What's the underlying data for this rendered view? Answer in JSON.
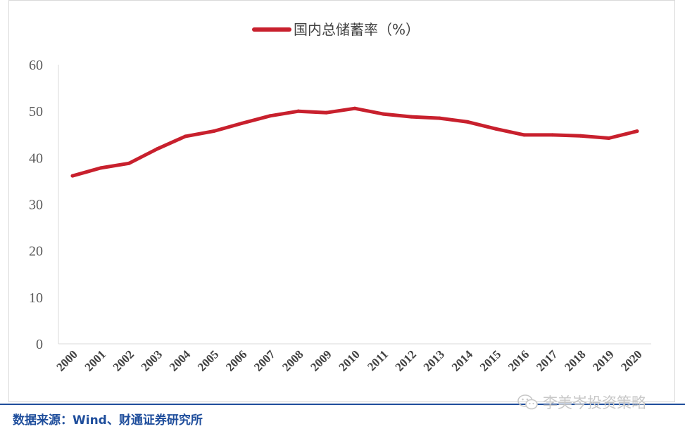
{
  "chart_data": {
    "type": "line",
    "title": "",
    "xlabel": "",
    "ylabel": "",
    "ylim": [
      0,
      60
    ],
    "y_ticks": [
      0,
      10,
      20,
      30,
      40,
      50,
      60
    ],
    "grid": false,
    "legend_position": "top-center",
    "categories": [
      "2000",
      "2001",
      "2002",
      "2003",
      "2004",
      "2005",
      "2006",
      "2007",
      "2008",
      "2009",
      "2010",
      "2011",
      "2012",
      "2013",
      "2014",
      "2015",
      "2016",
      "2017",
      "2018",
      "2019",
      "2020"
    ],
    "series": [
      {
        "name": "国内总储蓄率（%）",
        "color": "#c8202d",
        "values": [
          36.1,
          37.8,
          38.8,
          41.9,
          44.6,
          45.7,
          47.4,
          49.0,
          50.0,
          49.7,
          50.6,
          49.4,
          48.8,
          48.5,
          47.7,
          46.2,
          44.9,
          44.9,
          44.7,
          44.2,
          45.7
        ]
      }
    ]
  },
  "footer": {
    "source": "数据来源：Wind、财通证券研究所",
    "watermark": "李美岑投资策略",
    "watermark_icon": "wechat-icon"
  }
}
